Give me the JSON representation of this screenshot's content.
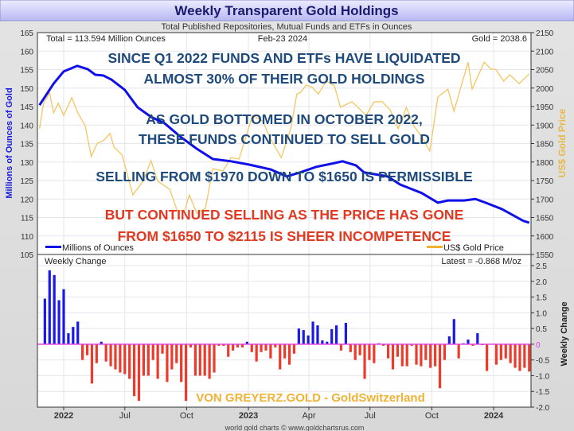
{
  "chart_data": [
    {
      "type": "line",
      "title": "Weekly Transparent Gold Holdings",
      "subtitle": "Total Published Repositories, Mutual Funds and ETFs in Ounces",
      "info_left": "Total = 113.594 Million Ounces",
      "info_center": "Feb-23  2024",
      "info_right": "Gold = 2038.6",
      "ylabel": "Millions of Ounces of Gold",
      "y2label": "US$ Gold Price",
      "ylim": [
        105,
        165
      ],
      "y2lim": [
        1550,
        2150
      ],
      "yticks": [
        165,
        160,
        155,
        150,
        145,
        140,
        135,
        130,
        125,
        120,
        115,
        110,
        105
      ],
      "y2ticks": [
        2150,
        2100,
        2050,
        2000,
        1950,
        1900,
        1850,
        1800,
        1750,
        1700,
        1650,
        1600,
        1550
      ],
      "grid": true,
      "legend_placement": "bottom",
      "series": [
        {
          "name": "Millions of Ounces",
          "color": "#1010e8",
          "axis": "left",
          "points": [
            [
              "2022-02-24",
              145.4
            ],
            [
              "2022-03-17",
              151.2
            ],
            [
              "2022-04-01",
              154.5
            ],
            [
              "2022-04-21",
              156
            ],
            [
              "2022-05-07",
              155.1
            ],
            [
              "2022-05-18",
              153.6
            ],
            [
              "2022-05-30",
              153.4
            ],
            [
              "2022-06-11",
              152.3
            ],
            [
              "2022-07-01",
              149.5
            ],
            [
              "2022-07-20",
              144.8
            ],
            [
              "2022-08-09",
              142.2
            ],
            [
              "2022-08-29",
              140.5
            ],
            [
              "2022-09-22",
              136.8
            ],
            [
              "2022-10-16",
              133.6
            ],
            [
              "2022-11-09",
              130.8
            ],
            [
              "2022-12-06",
              130.2
            ],
            [
              "2023-01-02",
              129.3
            ],
            [
              "2023-02-03",
              128
            ],
            [
              "2023-02-27",
              126.1
            ],
            [
              "2023-03-19",
              127.2
            ],
            [
              "2023-04-12",
              128.7
            ],
            [
              "2023-05-09",
              129.7
            ],
            [
              "2023-05-21",
              130.2
            ],
            [
              "2023-06-10",
              129.1
            ],
            [
              "2023-06-22",
              127.2
            ],
            [
              "2023-07-27",
              126.1
            ],
            [
              "2023-08-15",
              123.9
            ],
            [
              "2023-09-16",
              121.6
            ],
            [
              "2023-10-10",
              119
            ],
            [
              "2023-10-25",
              119.6
            ],
            [
              "2023-11-18",
              119.6
            ],
            [
              "2023-12-05",
              120
            ],
            [
              "2023-12-20",
              119
            ],
            [
              "2024-01-13",
              117.3
            ],
            [
              "2024-02-14",
              114.1
            ],
            [
              "2024-02-23",
              113.594
            ]
          ]
        },
        {
          "name": "US$ Gold Price",
          "color": "#f5c660",
          "axis": "right",
          "points": [
            [
              "2022-02-24",
              1890
            ],
            [
              "2022-03-02",
              1959
            ],
            [
              "2022-03-11",
              1987
            ],
            [
              "2022-03-17",
              1933
            ],
            [
              "2022-03-24",
              1959
            ],
            [
              "2022-04-01",
              1926
            ],
            [
              "2022-04-13",
              1974
            ],
            [
              "2022-04-22",
              1933
            ],
            [
              "2022-05-03",
              1898
            ],
            [
              "2022-05-12",
              1815
            ],
            [
              "2022-05-21",
              1851
            ],
            [
              "2022-05-30",
              1858
            ],
            [
              "2022-06-09",
              1877
            ],
            [
              "2022-06-15",
              1840
            ],
            [
              "2022-06-27",
              1819
            ],
            [
              "2022-07-13",
              1711
            ],
            [
              "2022-07-28",
              1748
            ],
            [
              "2022-08-09",
              1804
            ],
            [
              "2022-08-19",
              1748
            ],
            [
              "2022-09-06",
              1726
            ],
            [
              "2022-09-17",
              1668
            ],
            [
              "2022-09-28",
              1668
            ],
            [
              "2022-10-05",
              1711
            ],
            [
              "2022-10-16",
              1662
            ],
            [
              "2022-10-29",
              1675
            ],
            [
              "2022-11-09",
              1782
            ],
            [
              "2022-11-24",
              1776
            ],
            [
              "2022-12-06",
              1812
            ],
            [
              "2022-12-18",
              1808
            ],
            [
              "2022-12-26",
              1855
            ],
            [
              "2023-01-07",
              1926
            ],
            [
              "2023-01-22",
              1911
            ],
            [
              "2023-02-03",
              1862
            ],
            [
              "2023-02-19",
              1812
            ],
            [
              "2023-03-05",
              1890
            ],
            [
              "2023-03-14",
              1984
            ],
            [
              "2023-03-19",
              1987
            ],
            [
              "2023-03-28",
              2008
            ],
            [
              "2023-04-06",
              2002
            ],
            [
              "2023-04-15",
              1984
            ],
            [
              "2023-04-27",
              2019
            ],
            [
              "2023-05-09",
              2006
            ],
            [
              "2023-05-18",
              1948
            ],
            [
              "2023-06-04",
              1963
            ],
            [
              "2023-06-13",
              1948
            ],
            [
              "2023-06-25",
              1926
            ],
            [
              "2023-07-07",
              1963
            ],
            [
              "2023-07-19",
              1963
            ],
            [
              "2023-07-31",
              1941
            ],
            [
              "2023-08-12",
              1890
            ],
            [
              "2023-08-24",
              1948
            ],
            [
              "2023-09-04",
              1898
            ],
            [
              "2023-09-16",
              1868
            ],
            [
              "2023-09-28",
              1830
            ],
            [
              "2023-10-10",
              1976
            ],
            [
              "2023-10-25",
              1997
            ],
            [
              "2023-11-03",
              1937
            ],
            [
              "2023-11-12",
              1995
            ],
            [
              "2023-11-24",
              2070
            ],
            [
              "2023-11-30",
              1997
            ],
            [
              "2023-12-18",
              2070
            ],
            [
              "2023-12-28",
              2051
            ],
            [
              "2024-01-04",
              2051
            ],
            [
              "2024-01-16",
              2019
            ],
            [
              "2024-01-25",
              2036
            ],
            [
              "2024-02-08",
              2012
            ],
            [
              "2024-02-23",
              2038.6
            ]
          ]
        }
      ],
      "annotations": [
        {
          "text": "SINCE Q1 2022 FUNDS AND ETFs HAVE LIQUIDATED",
          "color": "#1f4a7c"
        },
        {
          "text": "ALMOST 30% OF THEIR GOLD HOLDINGS",
          "color": "#1f4a7c"
        },
        {
          "text": "AS GOLD BOTTOMED IN OCTOBER 2022,",
          "color": "#1f4a7c"
        },
        {
          "text": "THESE FUNDS CONTINUED TO SELL GOLD",
          "color": "#1f4a7c"
        },
        {
          "text": "SELLING FROM $1970 DOWN TO $1650 IS PERMISSIBLE",
          "color": "#1f4a7c"
        },
        {
          "text": "BUT CONTINUED SELLING AS THE PRICE HAS GONE",
          "color": "#e23a22"
        },
        {
          "text": "FROM $1650 TO $2115 IS SHEER INCOMPETENCE",
          "color": "#e23a22"
        }
      ]
    },
    {
      "type": "bar",
      "title": "Weekly Change",
      "info_right": "Latest = -0.868 M/oz",
      "ylabel": "Weekly Change",
      "ylim": [
        -2.0,
        2.5
      ],
      "yticks": [
        "2.5",
        "2.0",
        "1.5",
        "1.0",
        "0.5",
        "0",
        "-0.5",
        "-1.0",
        "-1.5",
        "-2.0"
      ],
      "x_first": "2022-03-04",
      "x_last": "2024-02-23",
      "positive_color": "#1a1ae6",
      "negative_color": "#ee3a2a",
      "zero_line_color": "#e040e0",
      "values": [
        1.45,
        2.35,
        2.2,
        1.4,
        1.75,
        0.35,
        0.55,
        0.72,
        -0.5,
        -0.35,
        -1.25,
        -0.6,
        0.08,
        -0.55,
        -0.7,
        -0.8,
        -0.9,
        -0.95,
        -1.1,
        -1.65,
        -1.8,
        -1.0,
        -1.0,
        -0.5,
        -1.1,
        -0.3,
        -1.2,
        -0.8,
        -0.6,
        -1.2,
        -1.8,
        -0.1,
        -1.0,
        -1.0,
        -1.0,
        -1.1,
        -0.9,
        -0.05,
        -0.05,
        -0.4,
        -0.2,
        -0.1,
        -0.1,
        0.08,
        -0.25,
        -0.55,
        -0.25,
        -0.2,
        -0.45,
        -0.1,
        -0.8,
        -0.45,
        -0.65,
        -0.3,
        0.5,
        0.45,
        0.28,
        0.72,
        0.6,
        0.12,
        0.08,
        0.48,
        0.6,
        -0.2,
        0.68,
        -0.25,
        -0.5,
        -0.35,
        -1.1,
        -0.5,
        -0.6,
        0.03,
        -0.05,
        -0.45,
        -0.8,
        -0.4,
        -0.7,
        -0.7,
        -0.05,
        -0.65,
        -0.7,
        -0.5,
        -0.75,
        -0.7,
        -1.4,
        -0.5,
        0.25,
        0.8,
        -0.45,
        0.03,
        0.15,
        -0.05,
        0.35,
        -0.03,
        -0.85,
        0,
        -0.65,
        -0.5,
        -0.45,
        -0.6,
        -0.75,
        -0.85,
        -0.75,
        -0.868
      ],
      "xticks": [
        {
          "label": "2022",
          "date": "2022-04-01"
        },
        {
          "label": "Jul",
          "date": "2022-07-01"
        },
        {
          "label": "Oct",
          "date": "2022-10-01"
        },
        {
          "label": "2023",
          "date": "2023-01-01"
        },
        {
          "label": "Apr",
          "date": "2023-04-01"
        },
        {
          "label": "Jul",
          "date": "2023-07-01"
        },
        {
          "label": "Oct",
          "date": "2023-10-01"
        },
        {
          "label": "2024",
          "date": "2024-01-01"
        }
      ],
      "watermark": "VON GREYERZ.GOLD - GoldSwitzerland",
      "watermark_color": "#f0b234"
    }
  ],
  "footer": "world gold charts © www.goldchartsrus.com"
}
